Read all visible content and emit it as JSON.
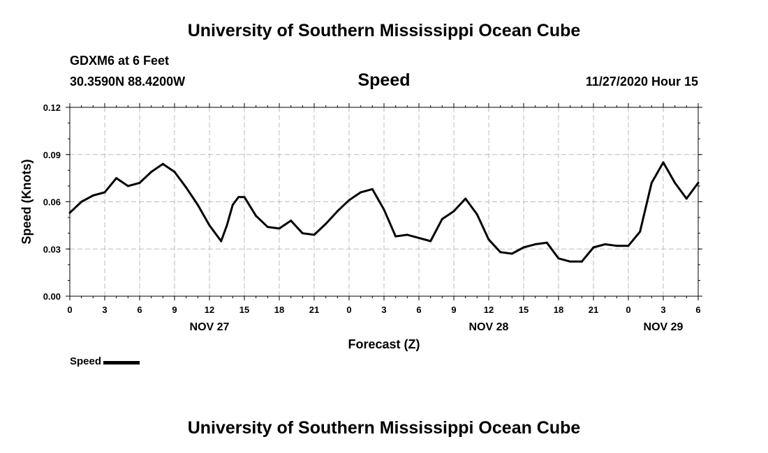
{
  "header": {
    "title": "University of Southern Mississippi Ocean Cube",
    "station": "GDXM6 at 6 Feet",
    "coords": "30.3590N 88.4200W",
    "datetime": "11/27/2020 Hour 15"
  },
  "footer": {
    "title": "University of Southern Mississippi Ocean Cube"
  },
  "legend": {
    "label": "Speed",
    "color": "#000000"
  },
  "chart_data": {
    "type": "line",
    "title": "Speed",
    "xlabel": "Forecast (Z)",
    "ylabel": "Speed (Knots)",
    "ylim": [
      0,
      0.12
    ],
    "yticks": [
      "0.00",
      "0.03",
      "0.06",
      "0.09",
      "0.12"
    ],
    "xlim": [
      0,
      54
    ],
    "xticks": [
      "0",
      "3",
      "6",
      "9",
      "12",
      "15",
      "18",
      "21",
      "0",
      "3",
      "6",
      "9",
      "12",
      "15",
      "18",
      "21",
      "0",
      "3",
      "6"
    ],
    "date_labels": [
      {
        "label": "NOV 27",
        "hour": 12
      },
      {
        "label": "NOV 28",
        "hour": 36
      },
      {
        "label": "NOV 29",
        "hour": 51
      }
    ],
    "grid": true,
    "series": [
      {
        "name": "Speed",
        "color": "#000000",
        "x": [
          0,
          1,
          2,
          3,
          4,
          5,
          6,
          7,
          8,
          9,
          10,
          11,
          12,
          13,
          13.5,
          14,
          14.5,
          15,
          16,
          17,
          18,
          19,
          20,
          21,
          22,
          23,
          24,
          25,
          26,
          27,
          28,
          29,
          30,
          31,
          32,
          33,
          34,
          35,
          36,
          37,
          38,
          39,
          40,
          41,
          42,
          43,
          44,
          45,
          46,
          47,
          48,
          49,
          50,
          51,
          52,
          53,
          54
        ],
        "values": [
          0.053,
          0.06,
          0.064,
          0.066,
          0.075,
          0.07,
          0.072,
          0.079,
          0.084,
          0.079,
          0.069,
          0.058,
          0.045,
          0.035,
          0.045,
          0.058,
          0.063,
          0.063,
          0.051,
          0.044,
          0.043,
          0.048,
          0.04,
          0.039,
          0.046,
          0.054,
          0.061,
          0.066,
          0.068,
          0.055,
          0.038,
          0.039,
          0.037,
          0.035,
          0.049,
          0.054,
          0.062,
          0.052,
          0.036,
          0.028,
          0.027,
          0.031,
          0.033,
          0.034,
          0.024,
          0.022,
          0.022,
          0.031,
          0.033,
          0.032,
          0.032,
          0.041,
          0.072,
          0.085,
          0.072,
          0.062,
          0.072
        ]
      }
    ]
  }
}
